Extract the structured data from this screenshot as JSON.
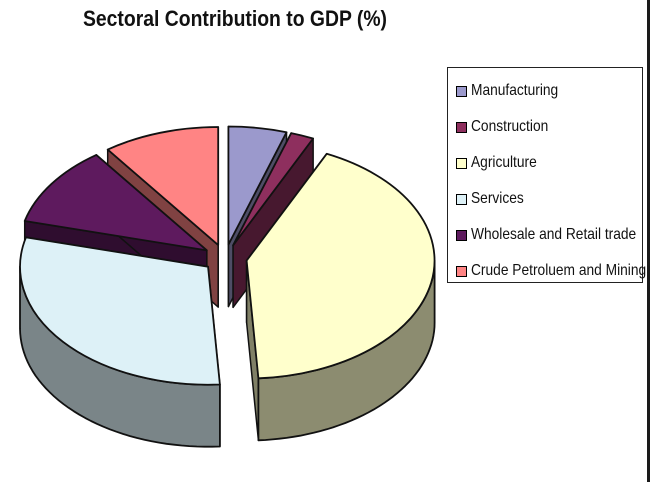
{
  "chart_data": {
    "type": "pie",
    "title": "Sectoral Contribution to GDP (%)",
    "legend_position": "right",
    "three_d": true,
    "exploded": true,
    "slices": [
      {
        "label": "Manufacturing",
        "value": 5,
        "color": "#9B99CC"
      },
      {
        "label": "Construction",
        "value": 2,
        "color": "#8E2F5E"
      },
      {
        "label": "Agriculture",
        "value": 42,
        "color": "#FFFFCC"
      },
      {
        "label": "Services",
        "value": 30,
        "color": "#DDF1F7"
      },
      {
        "label": "Wholesale and Retail trade",
        "value": 11,
        "color": "#5E1A5E"
      },
      {
        "label": "Crude Petroluem and Mining",
        "value": 10,
        "color": "#FF8484"
      }
    ]
  }
}
